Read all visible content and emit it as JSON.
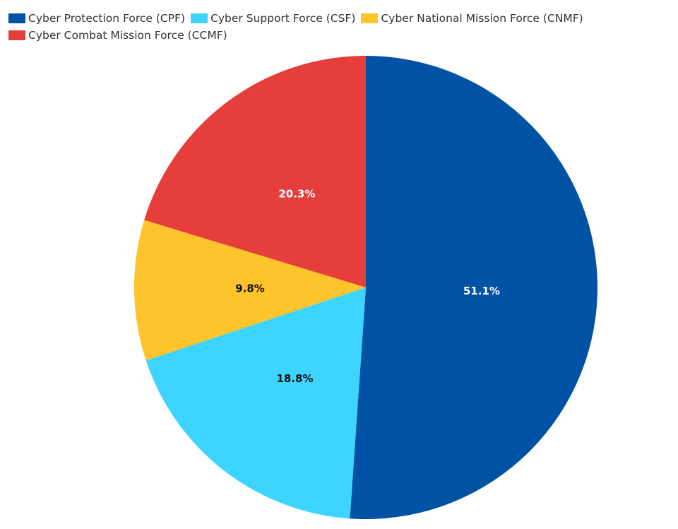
{
  "chart_data": {
    "type": "pie",
    "categories": [
      "Cyber Protection Force (CPF)",
      "Cyber Support Force (CSF)",
      "Cyber National Mission Force (CNMF)",
      "Cyber Combat Mission Force (CCMF)"
    ],
    "values": [
      51.1,
      18.8,
      9.8,
      20.3
    ],
    "value_labels": [
      "51.1%",
      "18.8%",
      "9.8%",
      "20.3%"
    ],
    "colors": [
      "#0052a5",
      "#3dd5ff",
      "#fec42b",
      "#e53e3b"
    ]
  }
}
